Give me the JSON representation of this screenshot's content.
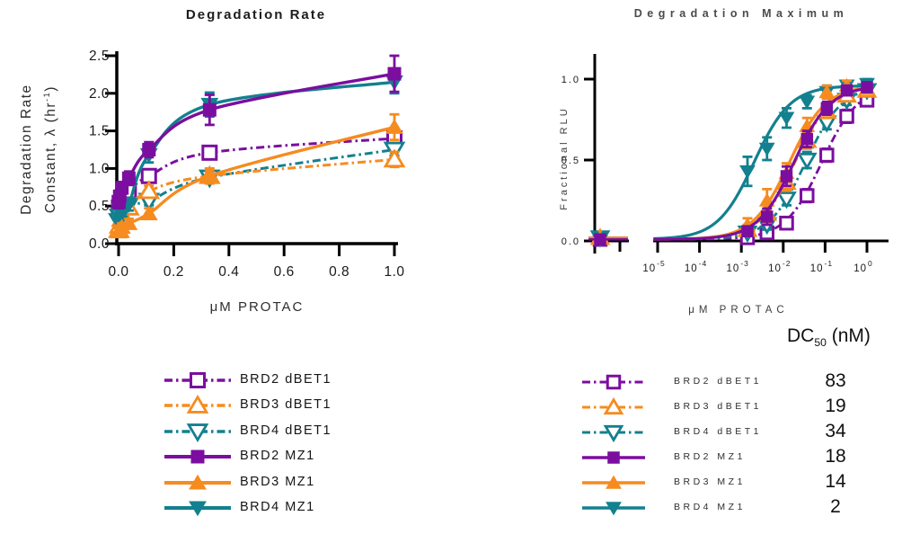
{
  "colors": {
    "purple": "#7B0E9F",
    "orange": "#F68B1F",
    "teal": "#13808F",
    "axis": "#000000"
  },
  "chart_data": [
    {
      "type": "scatter",
      "title": "Degradation Rate",
      "xlabel": "μM PROTAC",
      "ylabel_line1": "Degradation Rate",
      "ylabel_line2_pre": "Constant, λ (hr",
      "ylabel_line2_sup": "-1",
      "ylabel_line2_post": ")",
      "xlim": [
        0.0,
        1.0
      ],
      "ylim": [
        0.0,
        2.5
      ],
      "x_ticks": [
        "0.0",
        "0.2",
        "0.4",
        "0.6",
        "0.8",
        "1.0"
      ],
      "y_ticks": [
        "0.0",
        "0.5",
        "1.0",
        "1.5",
        "2.0",
        "2.5"
      ],
      "x_scale": "linear",
      "grid": false,
      "x_values_uM": [
        0.0014,
        0.0041,
        0.012,
        0.037,
        0.11,
        0.33,
        1.0
      ],
      "series": [
        {
          "name": "BRD2 dBET1",
          "color": "purple",
          "marker": "square",
          "filled": false,
          "line": "dashdot",
          "values": [
            0.48,
            0.54,
            0.6,
            0.7,
            0.9,
            1.21,
            1.4
          ],
          "err": [
            0.05,
            0.05,
            0.05,
            0.06,
            0.07,
            0.08,
            0.12
          ]
        },
        {
          "name": "BRD3 dBET1",
          "color": "orange",
          "marker": "triangle-up",
          "filled": false,
          "line": "dashdot",
          "values": [
            0.18,
            0.24,
            0.33,
            0.48,
            0.7,
            0.9,
            1.12
          ],
          "err": [
            0.05,
            0.05,
            0.06,
            0.07,
            0.07,
            0.08,
            0.1
          ]
        },
        {
          "name": "BRD4 dBET1",
          "color": "teal",
          "marker": "triangle-down",
          "filled": false,
          "line": "dashdot",
          "values": [
            0.3,
            0.36,
            0.43,
            0.52,
            0.57,
            0.88,
            1.25
          ],
          "err": [
            0.05,
            0.05,
            0.05,
            0.06,
            0.06,
            0.07,
            0.08
          ]
        },
        {
          "name": "BRD2 MZ1",
          "color": "purple",
          "marker": "square",
          "filled": true,
          "line": "solid",
          "values": [
            0.55,
            0.63,
            0.74,
            0.87,
            1.25,
            1.78,
            2.26
          ],
          "err": [
            0.08,
            0.08,
            0.08,
            0.09,
            0.1,
            0.2,
            0.24
          ]
        },
        {
          "name": "BRD3 MZ1",
          "color": "orange",
          "marker": "triangle-up",
          "filled": true,
          "line": "solid",
          "values": [
            0.16,
            0.19,
            0.22,
            0.27,
            0.4,
            0.9,
            1.55
          ],
          "err": [
            0.05,
            0.05,
            0.05,
            0.06,
            0.07,
            0.1,
            0.17
          ]
        },
        {
          "name": "BRD4 MZ1",
          "color": "teal",
          "marker": "triangle-down",
          "filled": true,
          "line": "solid",
          "values": [
            0.28,
            0.34,
            0.42,
            0.52,
            1.18,
            1.85,
            2.15
          ],
          "err": [
            0.07,
            0.07,
            0.08,
            0.08,
            0.1,
            0.16,
            0.15
          ]
        }
      ]
    },
    {
      "type": "scatter",
      "title": "Degradation Maximum",
      "xlabel": "μM PROTAC",
      "ylabel": "Fractional RLU",
      "xlim_log10": [
        -5,
        0
      ],
      "ylim": [
        0.0,
        1.0
      ],
      "x_ticks": [
        {
          "b": "10",
          "e": "-5"
        },
        {
          "b": "10",
          "e": "-4"
        },
        {
          "b": "10",
          "e": "-3"
        },
        {
          "b": "10",
          "e": "-2"
        },
        {
          "b": "10",
          "e": "-1"
        },
        {
          "b": "10",
          "e": "0"
        }
      ],
      "y_ticks": [
        "1.0",
        "0.5",
        "0.0"
      ],
      "x_scale": "log",
      "axis_break_zero": true,
      "grid": false,
      "x_values_uM": [
        0,
        0.0014,
        0.0041,
        0.012,
        0.037,
        0.11,
        0.33,
        1.0
      ],
      "series": [
        {
          "name": "BRD2 dBET1",
          "color": "purple",
          "marker": "square",
          "filled": false,
          "line": "dashdot",
          "dc50_uM": 0.083,
          "fit_top": 0.96,
          "fit_bottom": 0.01,
          "values": [
            0.01,
            0.02,
            0.05,
            0.11,
            0.28,
            0.53,
            0.77,
            0.87
          ],
          "err": [
            0.01,
            0.01,
            0.02,
            0.03,
            0.04,
            0.04,
            0.04,
            0.03
          ]
        },
        {
          "name": "BRD3 dBET1",
          "color": "orange",
          "marker": "triangle-up",
          "filled": false,
          "line": "dashdot",
          "dc50_uM": 0.019,
          "fit_top": 0.96,
          "fit_bottom": 0.01,
          "values": [
            0.02,
            0.07,
            0.17,
            0.36,
            0.62,
            0.8,
            0.9,
            0.93
          ],
          "err": [
            0.01,
            0.03,
            0.06,
            0.05,
            0.05,
            0.04,
            0.03,
            0.03
          ]
        },
        {
          "name": "BRD4 dBET1",
          "color": "teal",
          "marker": "triangle-down",
          "filled": false,
          "line": "dashdot",
          "dc50_uM": 0.034,
          "fit_top": 0.96,
          "fit_bottom": 0.01,
          "values": [
            0.02,
            0.05,
            0.1,
            0.26,
            0.5,
            0.73,
            0.87,
            0.93
          ],
          "err": [
            0.01,
            0.02,
            0.03,
            0.04,
            0.05,
            0.04,
            0.03,
            0.03
          ]
        },
        {
          "name": "BRD2 MZ1",
          "color": "purple",
          "marker": "square",
          "filled": true,
          "line": "solid",
          "dc50_uM": 0.018,
          "fit_top": 0.96,
          "fit_bottom": 0.01,
          "values": [
            0.01,
            0.06,
            0.15,
            0.4,
            0.63,
            0.82,
            0.93,
            0.95
          ],
          "err": [
            0.01,
            0.03,
            0.05,
            0.06,
            0.05,
            0.04,
            0.03,
            0.03
          ]
        },
        {
          "name": "BRD3 MZ1",
          "color": "orange",
          "marker": "triangle-up",
          "filled": true,
          "line": "solid",
          "dc50_uM": 0.014,
          "fit_top": 0.96,
          "fit_bottom": 0.01,
          "values": [
            0.02,
            0.1,
            0.25,
            0.42,
            0.71,
            0.92,
            0.96,
            0.94
          ],
          "err": [
            0.01,
            0.04,
            0.07,
            0.06,
            0.05,
            0.04,
            0.03,
            0.03
          ]
        },
        {
          "name": "BRD4 MZ1",
          "color": "teal",
          "marker": "triangle-down",
          "filled": true,
          "line": "solid",
          "dc50_uM": 0.002,
          "fit_top": 0.96,
          "fit_bottom": 0.01,
          "values": [
            0.02,
            0.43,
            0.57,
            0.76,
            0.86,
            0.92,
            0.96,
            0.97
          ],
          "err": [
            0.01,
            0.09,
            0.07,
            0.06,
            0.04,
            0.04,
            0.03,
            0.03
          ]
        }
      ]
    }
  ],
  "legend_left": {
    "rows": [
      {
        "label": "BRD2 dBET1"
      },
      {
        "label": "BRD3 dBET1"
      },
      {
        "label": "BRD4 dBET1"
      },
      {
        "label": "BRD2 MZ1"
      },
      {
        "label": "BRD3 MZ1"
      },
      {
        "label": "BRD4 MZ1"
      }
    ]
  },
  "legend_right": {
    "header_main": "DC",
    "header_sub": "50",
    "header_suffix": " (nM)",
    "rows": [
      {
        "label": "BRD2 dBET1",
        "dc50": "83"
      },
      {
        "label": "BRD3 dBET1",
        "dc50": "19"
      },
      {
        "label": "BRD4 dBET1",
        "dc50": "34"
      },
      {
        "label": "BRD2 MZ1",
        "dc50": "18"
      },
      {
        "label": "BRD3 MZ1",
        "dc50": "14"
      },
      {
        "label": "BRD4 MZ1",
        "dc50": "2"
      }
    ]
  }
}
